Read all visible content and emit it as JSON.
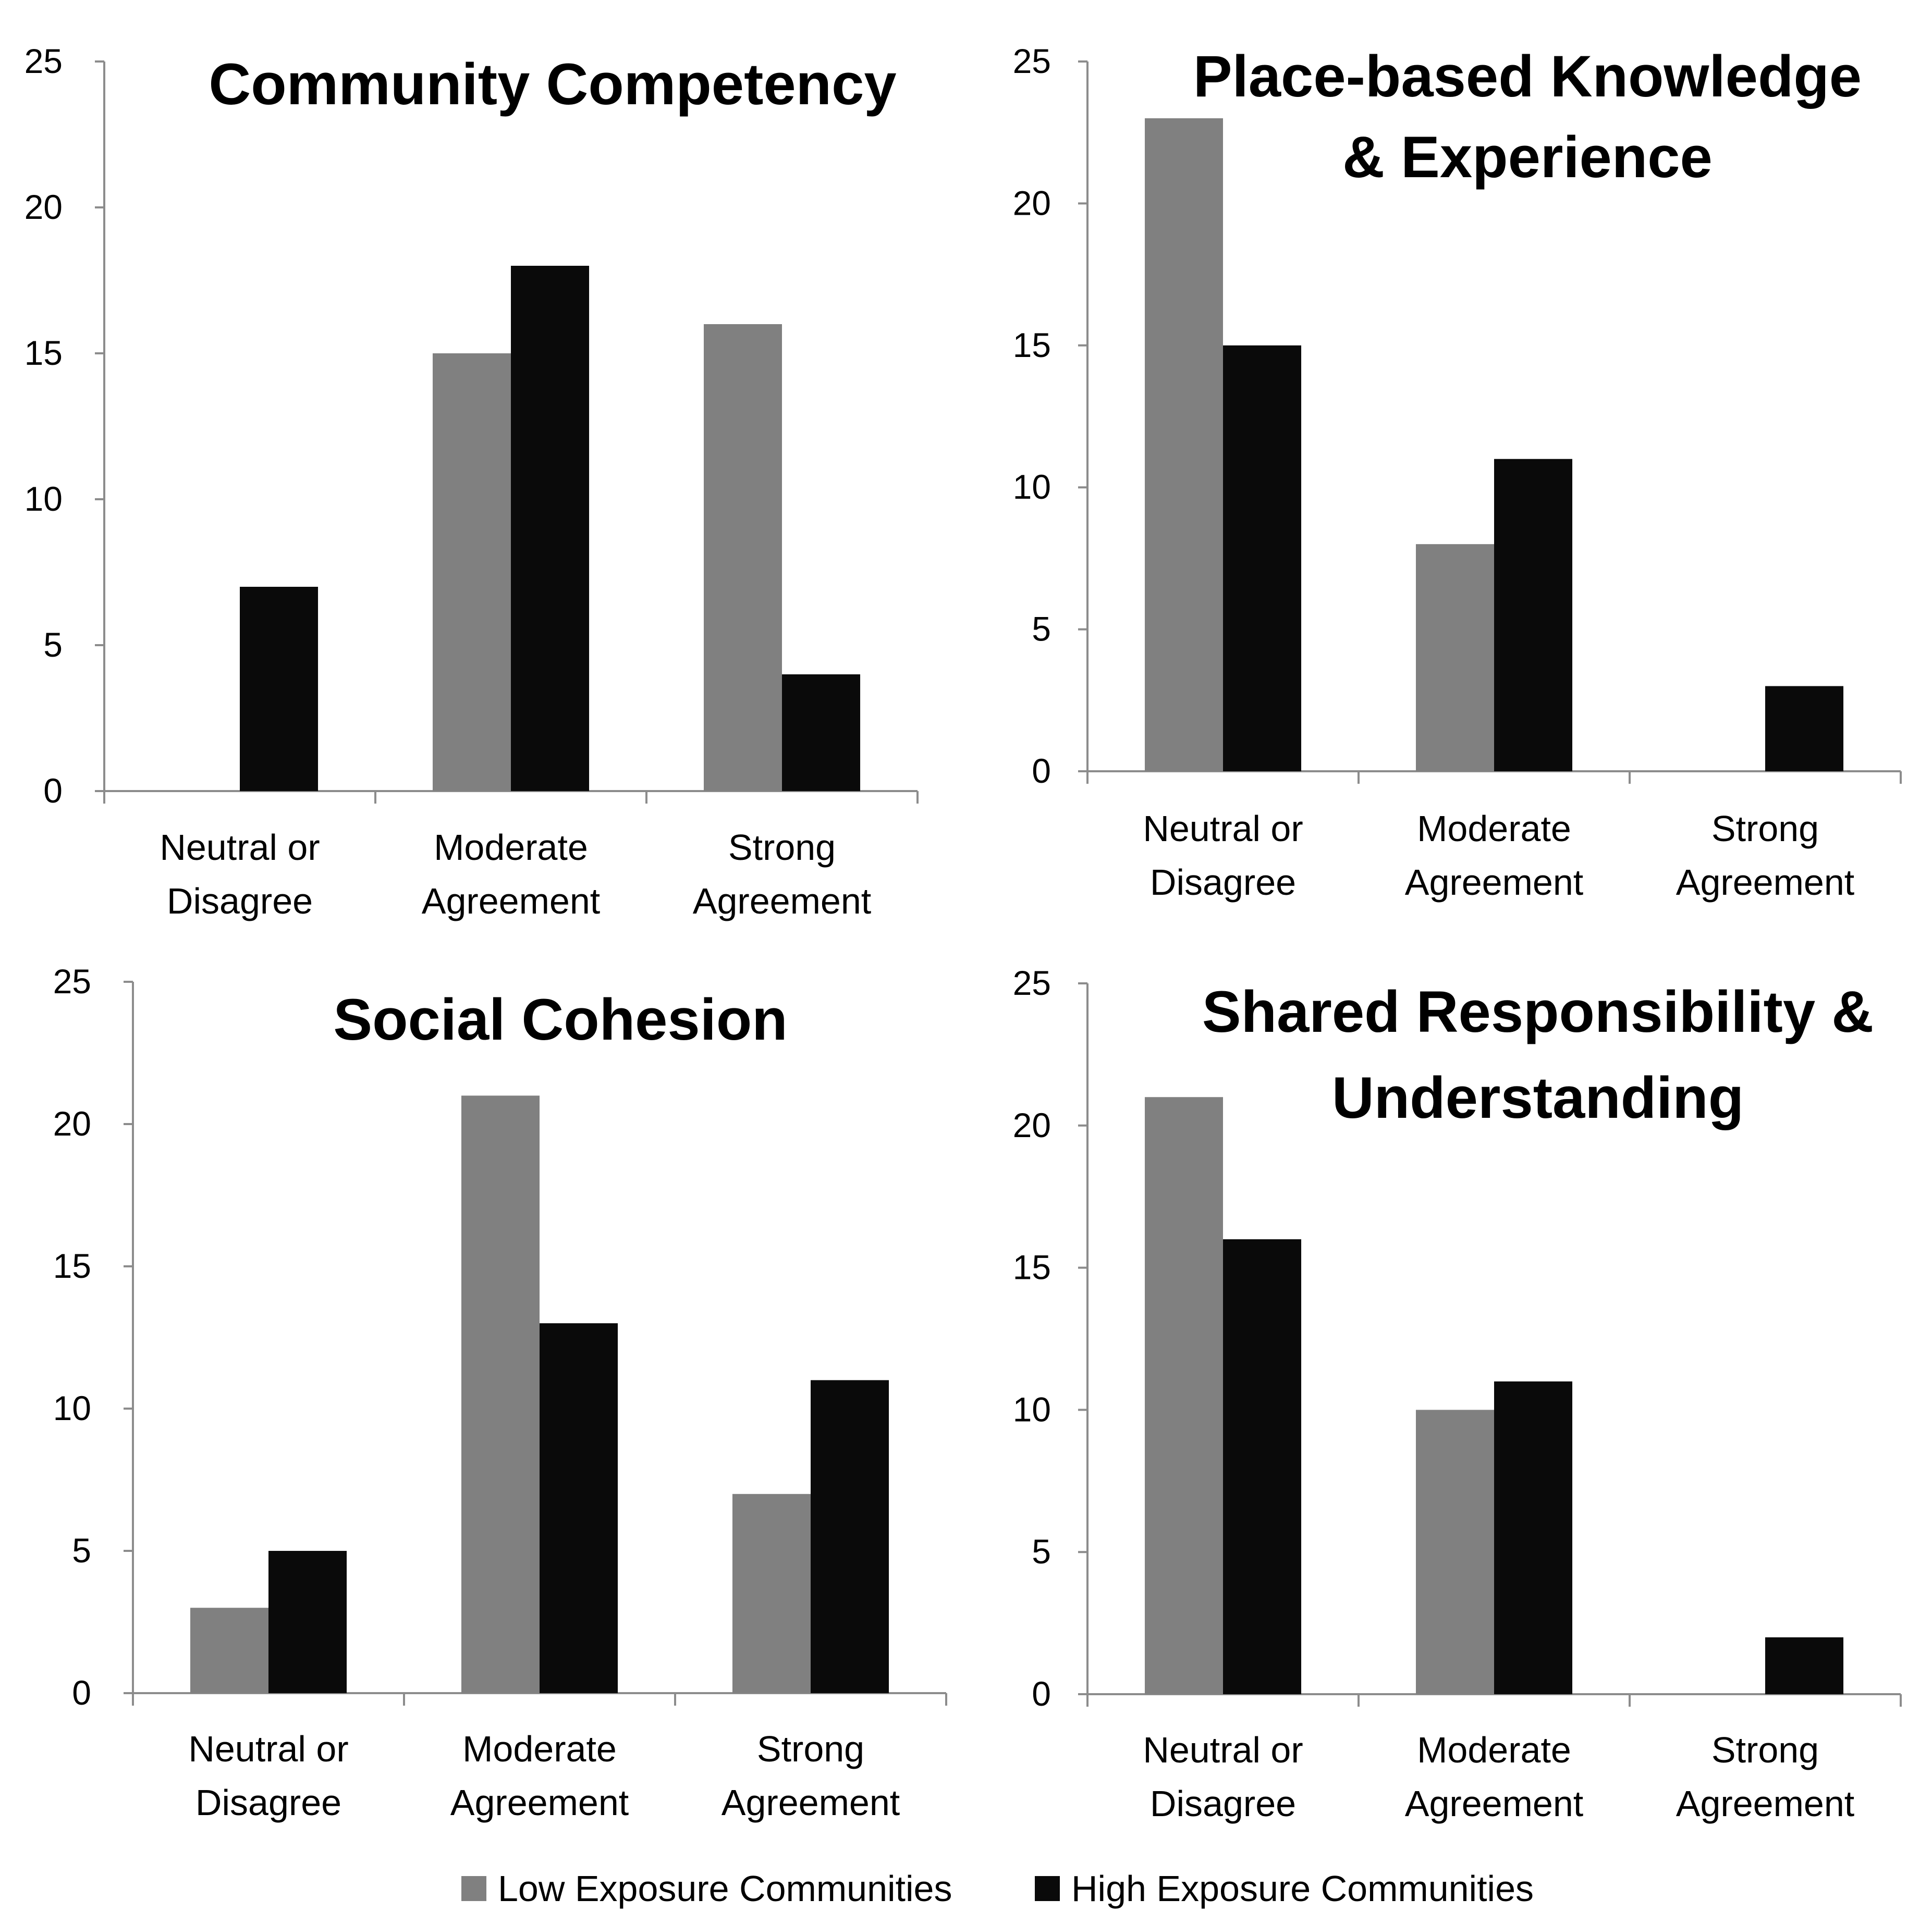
{
  "chart_data": [
    {
      "type": "bar",
      "title": [
        "Community Competency"
      ],
      "categories": [
        [
          "Neutral or",
          "Disagree"
        ],
        [
          "Moderate",
          "Agreement"
        ],
        [
          "Strong",
          "Agreement"
        ]
      ],
      "series": [
        {
          "name": "Low Exposure Communities",
          "values": [
            0,
            15,
            16
          ]
        },
        {
          "name": "High Exposure Communities",
          "values": [
            7,
            18,
            4
          ]
        }
      ],
      "ylim": [
        0,
        25
      ],
      "yticks": [
        0,
        5,
        10,
        15,
        20,
        25
      ]
    },
    {
      "type": "bar",
      "title": [
        "Place-based Knowledge",
        "& Experience"
      ],
      "categories": [
        [
          "Neutral or",
          "Disagree"
        ],
        [
          "Moderate",
          "Agreement"
        ],
        [
          "Strong",
          "Agreement"
        ]
      ],
      "series": [
        {
          "name": "Low Exposure Communities",
          "values": [
            23,
            8,
            0
          ]
        },
        {
          "name": "High Exposure Communities",
          "values": [
            15,
            11,
            3
          ]
        }
      ],
      "ylim": [
        0,
        25
      ],
      "yticks": [
        0,
        5,
        10,
        15,
        20,
        25
      ]
    },
    {
      "type": "bar",
      "title": [
        "Social Cohesion"
      ],
      "categories": [
        [
          "Neutral or",
          "Disagree"
        ],
        [
          "Moderate",
          "Agreement"
        ],
        [
          "Strong",
          "Agreement"
        ]
      ],
      "series": [
        {
          "name": "Low Exposure Communities",
          "values": [
            3,
            21,
            7
          ]
        },
        {
          "name": "High Exposure Communities",
          "values": [
            5,
            13,
            11
          ]
        }
      ],
      "ylim": [
        0,
        25
      ],
      "yticks": [
        0,
        5,
        10,
        15,
        20,
        25
      ]
    },
    {
      "type": "bar",
      "title": [
        "Shared Responsibility &",
        "Understanding"
      ],
      "categories": [
        [
          "Neutral or",
          "Disagree"
        ],
        [
          "Moderate",
          "Agreement"
        ],
        [
          "Strong",
          "Agreement"
        ]
      ],
      "series": [
        {
          "name": "Low Exposure Communities",
          "values": [
            21,
            10,
            0
          ]
        },
        {
          "name": "High Exposure Communities",
          "values": [
            16,
            11,
            2
          ]
        }
      ],
      "ylim": [
        0,
        25
      ],
      "yticks": [
        0,
        5,
        10,
        15,
        20,
        25
      ]
    }
  ],
  "legend": {
    "items": [
      {
        "label": "Low Exposure Communities",
        "color": "#808080"
      },
      {
        "label": "High Exposure Communities",
        "color": "#0a0a0a"
      }
    ]
  },
  "colors": {
    "low": "#808080",
    "high": "#0a0a0a",
    "axis": "#8c8c8c"
  }
}
